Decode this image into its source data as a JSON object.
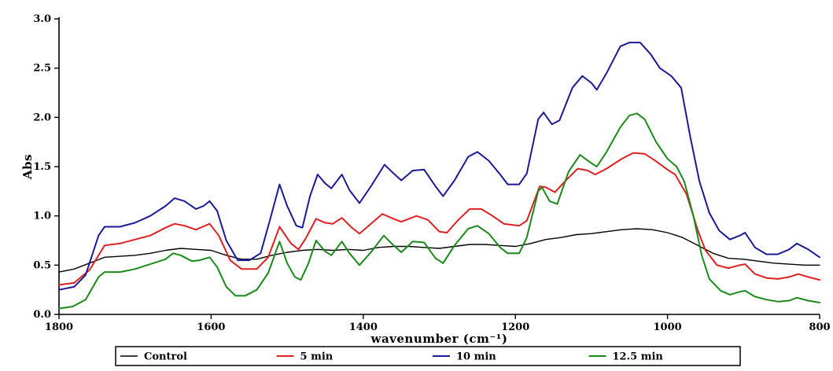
{
  "chart_data": {
    "type": "line",
    "xlabel": "wavenumber (cm⁻¹)",
    "ylabel": "Abs",
    "xlim": [
      1800,
      800
    ],
    "ylim": [
      0.0,
      3.0
    ],
    "x_reversed": true,
    "grid": false,
    "legend_position": "bottom",
    "x_ticks": [
      1800,
      1600,
      1400,
      1200,
      1000,
      800
    ],
    "x_tick_labels": [
      "1800",
      "1600",
      "1400",
      "1200",
      "1000",
      "800"
    ],
    "y_ticks": [
      0.0,
      0.5,
      1.0,
      1.5,
      2.0,
      2.5,
      3.0
    ],
    "y_tick_labels": [
      "0.0",
      "0.5",
      "1.0",
      "1.5",
      "2.0",
      "2.5",
      "3.0"
    ],
    "series": [
      {
        "name": "Control",
        "color": "#000000",
        "points": [
          [
            1800,
            0.43
          ],
          [
            1780,
            0.46
          ],
          [
            1760,
            0.52
          ],
          [
            1740,
            0.58
          ],
          [
            1720,
            0.59
          ],
          [
            1700,
            0.6
          ],
          [
            1680,
            0.62
          ],
          [
            1660,
            0.65
          ],
          [
            1640,
            0.67
          ],
          [
            1620,
            0.66
          ],
          [
            1600,
            0.65
          ],
          [
            1580,
            0.6
          ],
          [
            1560,
            0.56
          ],
          [
            1540,
            0.56
          ],
          [
            1520,
            0.6
          ],
          [
            1500,
            0.63
          ],
          [
            1480,
            0.65
          ],
          [
            1460,
            0.66
          ],
          [
            1440,
            0.65
          ],
          [
            1420,
            0.66
          ],
          [
            1400,
            0.65
          ],
          [
            1380,
            0.68
          ],
          [
            1360,
            0.69
          ],
          [
            1340,
            0.69
          ],
          [
            1320,
            0.68
          ],
          [
            1300,
            0.67
          ],
          [
            1280,
            0.69
          ],
          [
            1260,
            0.71
          ],
          [
            1240,
            0.71
          ],
          [
            1220,
            0.7
          ],
          [
            1200,
            0.69
          ],
          [
            1180,
            0.72
          ],
          [
            1160,
            0.76
          ],
          [
            1140,
            0.78
          ],
          [
            1120,
            0.81
          ],
          [
            1100,
            0.82
          ],
          [
            1080,
            0.84
          ],
          [
            1060,
            0.86
          ],
          [
            1040,
            0.87
          ],
          [
            1020,
            0.86
          ],
          [
            1000,
            0.83
          ],
          [
            980,
            0.78
          ],
          [
            960,
            0.7
          ],
          [
            940,
            0.62
          ],
          [
            920,
            0.57
          ],
          [
            900,
            0.56
          ],
          [
            880,
            0.54
          ],
          [
            860,
            0.52
          ],
          [
            840,
            0.51
          ],
          [
            820,
            0.5
          ],
          [
            800,
            0.5
          ]
        ]
      },
      {
        "name": "5 min",
        "color": "#e02020",
        "points": [
          [
            1800,
            0.3
          ],
          [
            1780,
            0.32
          ],
          [
            1760,
            0.45
          ],
          [
            1740,
            0.7
          ],
          [
            1720,
            0.72
          ],
          [
            1700,
            0.76
          ],
          [
            1680,
            0.8
          ],
          [
            1660,
            0.88
          ],
          [
            1648,
            0.92
          ],
          [
            1635,
            0.9
          ],
          [
            1620,
            0.86
          ],
          [
            1602,
            0.92
          ],
          [
            1590,
            0.8
          ],
          [
            1575,
            0.55
          ],
          [
            1560,
            0.46
          ],
          [
            1540,
            0.46
          ],
          [
            1525,
            0.58
          ],
          [
            1510,
            0.89
          ],
          [
            1495,
            0.72
          ],
          [
            1485,
            0.66
          ],
          [
            1475,
            0.78
          ],
          [
            1462,
            0.97
          ],
          [
            1450,
            0.93
          ],
          [
            1440,
            0.92
          ],
          [
            1428,
            0.98
          ],
          [
            1415,
            0.88
          ],
          [
            1405,
            0.82
          ],
          [
            1390,
            0.92
          ],
          [
            1375,
            1.02
          ],
          [
            1360,
            0.97
          ],
          [
            1350,
            0.94
          ],
          [
            1330,
            1.0
          ],
          [
            1315,
            0.96
          ],
          [
            1300,
            0.84
          ],
          [
            1290,
            0.83
          ],
          [
            1275,
            0.96
          ],
          [
            1260,
            1.07
          ],
          [
            1245,
            1.07
          ],
          [
            1230,
            1.0
          ],
          [
            1215,
            0.92
          ],
          [
            1195,
            0.9
          ],
          [
            1185,
            0.95
          ],
          [
            1168,
            1.3
          ],
          [
            1160,
            1.29
          ],
          [
            1148,
            1.24
          ],
          [
            1135,
            1.35
          ],
          [
            1118,
            1.48
          ],
          [
            1105,
            1.46
          ],
          [
            1095,
            1.42
          ],
          [
            1080,
            1.48
          ],
          [
            1060,
            1.58
          ],
          [
            1045,
            1.64
          ],
          [
            1030,
            1.63
          ],
          [
            1018,
            1.57
          ],
          [
            1000,
            1.47
          ],
          [
            990,
            1.42
          ],
          [
            975,
            1.22
          ],
          [
            960,
            0.85
          ],
          [
            950,
            0.65
          ],
          [
            935,
            0.5
          ],
          [
            920,
            0.47
          ],
          [
            905,
            0.5
          ],
          [
            898,
            0.51
          ],
          [
            885,
            0.41
          ],
          [
            870,
            0.37
          ],
          [
            855,
            0.36
          ],
          [
            840,
            0.38
          ],
          [
            828,
            0.41
          ],
          [
            815,
            0.38
          ],
          [
            800,
            0.35
          ]
        ]
      },
      {
        "name": "10 min",
        "color": "#1a1a99",
        "points": [
          [
            1800,
            0.25
          ],
          [
            1780,
            0.28
          ],
          [
            1765,
            0.4
          ],
          [
            1748,
            0.8
          ],
          [
            1740,
            0.89
          ],
          [
            1720,
            0.89
          ],
          [
            1700,
            0.93
          ],
          [
            1680,
            1.0
          ],
          [
            1660,
            1.1
          ],
          [
            1648,
            1.18
          ],
          [
            1635,
            1.15
          ],
          [
            1620,
            1.07
          ],
          [
            1610,
            1.1
          ],
          [
            1602,
            1.15
          ],
          [
            1592,
            1.05
          ],
          [
            1580,
            0.75
          ],
          [
            1565,
            0.55
          ],
          [
            1550,
            0.55
          ],
          [
            1535,
            0.62
          ],
          [
            1523,
            0.95
          ],
          [
            1510,
            1.32
          ],
          [
            1500,
            1.1
          ],
          [
            1488,
            0.9
          ],
          [
            1480,
            0.88
          ],
          [
            1470,
            1.2
          ],
          [
            1460,
            1.42
          ],
          [
            1450,
            1.33
          ],
          [
            1442,
            1.28
          ],
          [
            1428,
            1.42
          ],
          [
            1418,
            1.26
          ],
          [
            1405,
            1.13
          ],
          [
            1390,
            1.3
          ],
          [
            1372,
            1.52
          ],
          [
            1360,
            1.43
          ],
          [
            1350,
            1.36
          ],
          [
            1335,
            1.46
          ],
          [
            1320,
            1.47
          ],
          [
            1305,
            1.3
          ],
          [
            1295,
            1.2
          ],
          [
            1280,
            1.36
          ],
          [
            1262,
            1.6
          ],
          [
            1250,
            1.65
          ],
          [
            1235,
            1.56
          ],
          [
            1220,
            1.42
          ],
          [
            1210,
            1.32
          ],
          [
            1195,
            1.32
          ],
          [
            1185,
            1.43
          ],
          [
            1170,
            1.98
          ],
          [
            1163,
            2.05
          ],
          [
            1152,
            1.93
          ],
          [
            1142,
            1.97
          ],
          [
            1125,
            2.3
          ],
          [
            1112,
            2.42
          ],
          [
            1100,
            2.35
          ],
          [
            1093,
            2.28
          ],
          [
            1080,
            2.45
          ],
          [
            1062,
            2.72
          ],
          [
            1050,
            2.76
          ],
          [
            1036,
            2.76
          ],
          [
            1022,
            2.64
          ],
          [
            1010,
            2.5
          ],
          [
            995,
            2.42
          ],
          [
            982,
            2.3
          ],
          [
            970,
            1.8
          ],
          [
            958,
            1.35
          ],
          [
            945,
            1.03
          ],
          [
            932,
            0.85
          ],
          [
            918,
            0.76
          ],
          [
            905,
            0.8
          ],
          [
            898,
            0.83
          ],
          [
            885,
            0.68
          ],
          [
            870,
            0.61
          ],
          [
            855,
            0.61
          ],
          [
            840,
            0.66
          ],
          [
            830,
            0.72
          ],
          [
            815,
            0.66
          ],
          [
            800,
            0.58
          ]
        ]
      },
      {
        "name": "12.5 min",
        "color": "#1a8a1a",
        "points": [
          [
            1800,
            0.06
          ],
          [
            1782,
            0.08
          ],
          [
            1765,
            0.15
          ],
          [
            1748,
            0.38
          ],
          [
            1740,
            0.43
          ],
          [
            1720,
            0.43
          ],
          [
            1700,
            0.46
          ],
          [
            1680,
            0.51
          ],
          [
            1660,
            0.56
          ],
          [
            1650,
            0.62
          ],
          [
            1640,
            0.6
          ],
          [
            1625,
            0.54
          ],
          [
            1615,
            0.55
          ],
          [
            1602,
            0.58
          ],
          [
            1592,
            0.48
          ],
          [
            1580,
            0.28
          ],
          [
            1568,
            0.19
          ],
          [
            1555,
            0.19
          ],
          [
            1540,
            0.25
          ],
          [
            1525,
            0.42
          ],
          [
            1510,
            0.74
          ],
          [
            1500,
            0.52
          ],
          [
            1490,
            0.38
          ],
          [
            1482,
            0.35
          ],
          [
            1472,
            0.52
          ],
          [
            1462,
            0.75
          ],
          [
            1450,
            0.64
          ],
          [
            1442,
            0.6
          ],
          [
            1428,
            0.74
          ],
          [
            1418,
            0.62
          ],
          [
            1405,
            0.5
          ],
          [
            1390,
            0.63
          ],
          [
            1373,
            0.8
          ],
          [
            1360,
            0.7
          ],
          [
            1350,
            0.63
          ],
          [
            1335,
            0.74
          ],
          [
            1320,
            0.73
          ],
          [
            1305,
            0.57
          ],
          [
            1295,
            0.52
          ],
          [
            1280,
            0.7
          ],
          [
            1262,
            0.87
          ],
          [
            1250,
            0.9
          ],
          [
            1235,
            0.82
          ],
          [
            1220,
            0.68
          ],
          [
            1210,
            0.62
          ],
          [
            1195,
            0.62
          ],
          [
            1185,
            0.78
          ],
          [
            1170,
            1.25
          ],
          [
            1165,
            1.29
          ],
          [
            1155,
            1.15
          ],
          [
            1145,
            1.12
          ],
          [
            1130,
            1.45
          ],
          [
            1115,
            1.62
          ],
          [
            1103,
            1.55
          ],
          [
            1093,
            1.5
          ],
          [
            1080,
            1.65
          ],
          [
            1062,
            1.9
          ],
          [
            1050,
            2.02
          ],
          [
            1040,
            2.04
          ],
          [
            1030,
            1.98
          ],
          [
            1015,
            1.75
          ],
          [
            1000,
            1.58
          ],
          [
            988,
            1.5
          ],
          [
            978,
            1.35
          ],
          [
            966,
            1.0
          ],
          [
            955,
            0.6
          ],
          [
            945,
            0.36
          ],
          [
            930,
            0.24
          ],
          [
            918,
            0.2
          ],
          [
            905,
            0.23
          ],
          [
            898,
            0.24
          ],
          [
            885,
            0.18
          ],
          [
            870,
            0.15
          ],
          [
            855,
            0.13
          ],
          [
            840,
            0.14
          ],
          [
            830,
            0.17
          ],
          [
            815,
            0.14
          ],
          [
            800,
            0.12
          ]
        ]
      }
    ]
  }
}
